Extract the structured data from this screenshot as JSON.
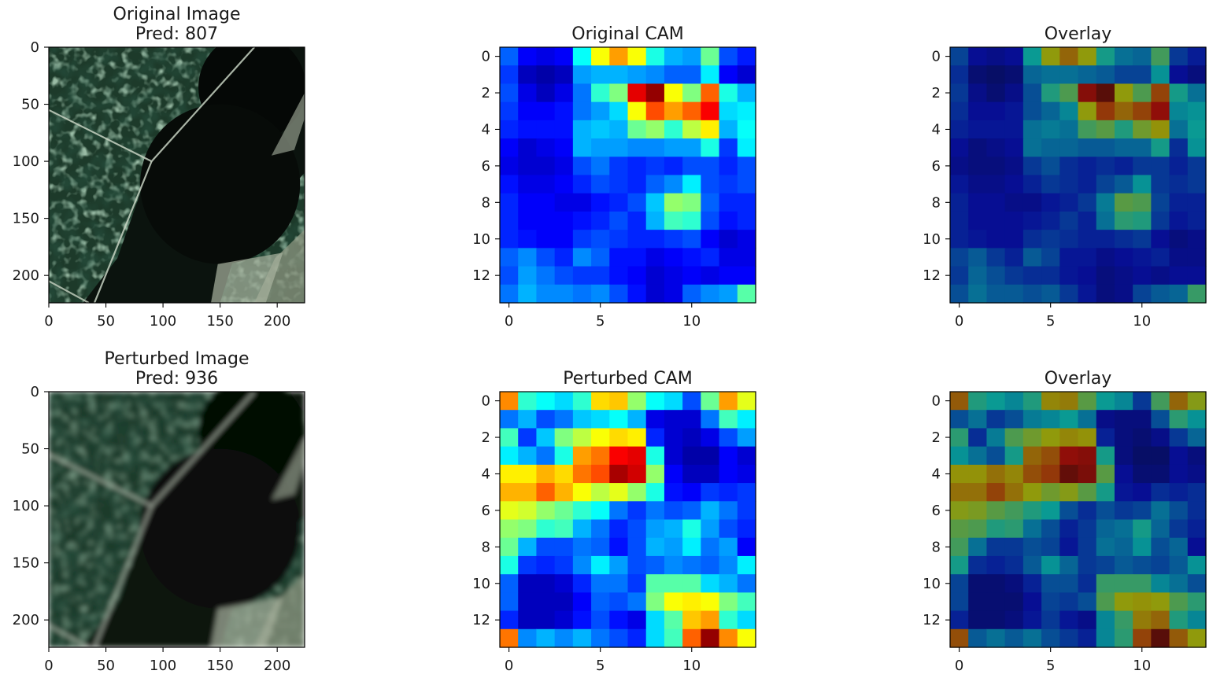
{
  "figure": {
    "layout": "2x3 grid"
  },
  "panels": [
    {
      "id": "orig-image",
      "title_lines": [
        "Original Image",
        "Pred: 807"
      ],
      "kind": "satellite_image",
      "variant": "sharp",
      "x_ticks": [
        "0",
        "50",
        "100",
        "150",
        "200"
      ],
      "y_ticks": [
        "0",
        "50",
        "100",
        "150",
        "200"
      ]
    },
    {
      "id": "orig-cam",
      "title_lines": [
        "Original CAM"
      ],
      "kind": "heatmap",
      "heatmap_index": 0,
      "x_ticks": [
        "0",
        "5",
        "10"
      ],
      "y_ticks": [
        "0",
        "2",
        "4",
        "6",
        "8",
        "10",
        "12"
      ]
    },
    {
      "id": "orig-overlay",
      "title_lines": [
        "Overlay"
      ],
      "kind": "overlay",
      "heatmap_index": 0,
      "x_ticks": [
        "0",
        "5",
        "10"
      ],
      "y_ticks": [
        "0",
        "2",
        "4",
        "6",
        "8",
        "10",
        "12"
      ]
    },
    {
      "id": "pert-image",
      "title_lines": [
        "Perturbed Image",
        "Pred: 936"
      ],
      "kind": "satellite_image",
      "variant": "blurred",
      "x_ticks": [
        "0",
        "50",
        "100",
        "150",
        "200"
      ],
      "y_ticks": [
        "0",
        "50",
        "100",
        "150",
        "200"
      ]
    },
    {
      "id": "pert-cam",
      "title_lines": [
        "Perturbed CAM"
      ],
      "kind": "heatmap",
      "heatmap_index": 1,
      "x_ticks": [
        "0",
        "5",
        "10"
      ],
      "y_ticks": [
        "0",
        "2",
        "4",
        "6",
        "8",
        "10",
        "12"
      ]
    },
    {
      "id": "pert-overlay",
      "title_lines": [
        "Overlay"
      ],
      "kind": "overlay",
      "heatmap_index": 1,
      "x_ticks": [
        "0",
        "5",
        "10"
      ],
      "y_ticks": [
        "0",
        "2",
        "4",
        "6",
        "8",
        "10",
        "12"
      ]
    }
  ],
  "chart_data": [
    {
      "type": "heatmap",
      "title": "Original CAM",
      "colormap": "jet",
      "xlim": [
        0,
        13
      ],
      "ylim": [
        13,
        0
      ],
      "z": [
        [
          0.22,
          0.12,
          0.1,
          0.12,
          0.38,
          0.62,
          0.72,
          0.62,
          0.4,
          0.3,
          0.28,
          0.48,
          0.2,
          0.15
        ],
        [
          0.18,
          0.06,
          0.04,
          0.06,
          0.28,
          0.3,
          0.3,
          0.28,
          0.26,
          0.22,
          0.22,
          0.36,
          0.12,
          0.08
        ],
        [
          0.2,
          0.1,
          0.06,
          0.1,
          0.24,
          0.42,
          0.5,
          0.9,
          0.98,
          0.62,
          0.5,
          0.78,
          0.4,
          0.3
        ],
        [
          0.18,
          0.12,
          0.12,
          0.14,
          0.24,
          0.28,
          0.34,
          0.62,
          0.8,
          0.72,
          0.78,
          0.88,
          0.34,
          0.36
        ],
        [
          0.16,
          0.14,
          0.14,
          0.14,
          0.3,
          0.32,
          0.3,
          0.48,
          0.52,
          0.42,
          0.56,
          0.64,
          0.3,
          0.38
        ],
        [
          0.12,
          0.08,
          0.1,
          0.12,
          0.3,
          0.28,
          0.28,
          0.26,
          0.26,
          0.28,
          0.28,
          0.4,
          0.18,
          0.36
        ],
        [
          0.1,
          0.08,
          0.08,
          0.1,
          0.2,
          0.24,
          0.18,
          0.16,
          0.18,
          0.16,
          0.2,
          0.2,
          0.16,
          0.2
        ],
        [
          0.14,
          0.1,
          0.1,
          0.12,
          0.16,
          0.2,
          0.18,
          0.16,
          0.22,
          0.26,
          0.36,
          0.2,
          0.18,
          0.2
        ],
        [
          0.16,
          0.12,
          0.12,
          0.1,
          0.1,
          0.14,
          0.16,
          0.2,
          0.32,
          0.52,
          0.5,
          0.22,
          0.16,
          0.16
        ],
        [
          0.16,
          0.12,
          0.12,
          0.12,
          0.14,
          0.16,
          0.2,
          0.16,
          0.3,
          0.44,
          0.42,
          0.2,
          0.14,
          0.16
        ],
        [
          0.16,
          0.14,
          0.12,
          0.12,
          0.18,
          0.2,
          0.18,
          0.16,
          0.16,
          0.18,
          0.2,
          0.12,
          0.08,
          0.1
        ],
        [
          0.22,
          0.26,
          0.2,
          0.16,
          0.26,
          0.22,
          0.14,
          0.14,
          0.1,
          0.12,
          0.14,
          0.16,
          0.1,
          0.1
        ],
        [
          0.2,
          0.28,
          0.24,
          0.2,
          0.18,
          0.18,
          0.14,
          0.12,
          0.08,
          0.1,
          0.12,
          0.1,
          0.12,
          0.12
        ],
        [
          0.24,
          0.3,
          0.26,
          0.26,
          0.24,
          0.26,
          0.2,
          0.14,
          0.08,
          0.1,
          0.22,
          0.26,
          0.28,
          0.46
        ]
      ]
    },
    {
      "type": "heatmap",
      "title": "Perturbed CAM",
      "colormap": "jet",
      "xlim": [
        0,
        13
      ],
      "ylim": [
        13,
        0
      ],
      "z": [
        [
          0.74,
          0.42,
          0.38,
          0.34,
          0.42,
          0.66,
          0.68,
          0.52,
          0.38,
          0.34,
          0.2,
          0.48,
          0.72,
          0.6
        ],
        [
          0.24,
          0.3,
          0.2,
          0.24,
          0.32,
          0.34,
          0.38,
          0.3,
          0.1,
          0.08,
          0.08,
          0.24,
          0.44,
          0.36
        ],
        [
          0.44,
          0.18,
          0.32,
          0.5,
          0.56,
          0.62,
          0.66,
          0.64,
          0.16,
          0.08,
          0.06,
          0.1,
          0.2,
          0.28
        ],
        [
          0.36,
          0.3,
          0.24,
          0.4,
          0.72,
          0.76,
          0.88,
          0.9,
          0.4,
          0.08,
          0.04,
          0.04,
          0.12,
          0.08
        ],
        [
          0.64,
          0.64,
          0.7,
          0.66,
          0.76,
          0.8,
          0.96,
          0.92,
          0.52,
          0.12,
          0.06,
          0.06,
          0.12,
          0.1
        ],
        [
          0.7,
          0.7,
          0.78,
          0.7,
          0.62,
          0.56,
          0.6,
          0.52,
          0.4,
          0.14,
          0.12,
          0.18,
          0.16,
          0.18
        ],
        [
          0.6,
          0.58,
          0.52,
          0.48,
          0.42,
          0.38,
          0.24,
          0.18,
          0.24,
          0.2,
          0.22,
          0.3,
          0.24,
          0.18
        ],
        [
          0.52,
          0.5,
          0.42,
          0.44,
          0.3,
          0.24,
          0.16,
          0.2,
          0.28,
          0.3,
          0.4,
          0.28,
          0.2,
          0.16
        ],
        [
          0.48,
          0.3,
          0.2,
          0.2,
          0.24,
          0.22,
          0.14,
          0.2,
          0.3,
          0.28,
          0.36,
          0.24,
          0.28,
          0.12
        ],
        [
          0.4,
          0.18,
          0.16,
          0.18,
          0.26,
          0.36,
          0.28,
          0.2,
          0.22,
          0.26,
          0.24,
          0.22,
          0.26,
          0.36
        ],
        [
          0.22,
          0.06,
          0.06,
          0.08,
          0.16,
          0.24,
          0.24,
          0.18,
          0.46,
          0.46,
          0.46,
          0.34,
          0.3,
          0.24
        ],
        [
          0.22,
          0.06,
          0.06,
          0.06,
          0.12,
          0.22,
          0.2,
          0.24,
          0.5,
          0.62,
          0.64,
          0.62,
          0.5,
          0.44
        ],
        [
          0.16,
          0.06,
          0.06,
          0.08,
          0.14,
          0.2,
          0.14,
          0.1,
          0.34,
          0.46,
          0.68,
          0.72,
          0.42,
          0.34
        ],
        [
          0.76,
          0.26,
          0.3,
          0.26,
          0.3,
          0.24,
          0.2,
          0.16,
          0.34,
          0.44,
          0.78,
          0.98,
          0.74,
          0.62
        ]
      ]
    }
  ]
}
